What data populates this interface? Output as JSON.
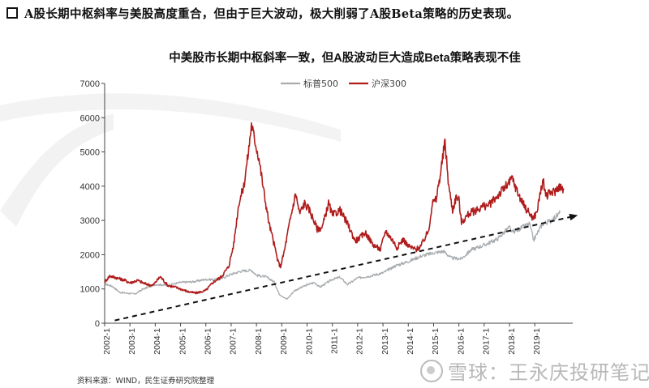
{
  "headline": "A股长期中枢斜率与美股高度重合，但由于巨大波动，极大削弱了A股Beta策略的历史表现。",
  "source": "资料来源：WIND，民生证券研究院整理",
  "watermark": "雪球：王永庆投研笔记",
  "colors": {
    "sp500": "#a8acaf",
    "hs300": "#b01c1c",
    "trend": "#111111",
    "grid": "#ffffff",
    "axis": "#444444"
  },
  "chart_data": {
    "type": "line",
    "title": "中美股市长期中枢斜率一致，但A股波动巨大造成Beta策略表现不佳",
    "xlabel": "",
    "ylabel": "",
    "ylim": [
      0,
      7000
    ],
    "yticks": [
      0,
      1000,
      2000,
      3000,
      4000,
      5000,
      6000,
      7000
    ],
    "xlim": [
      2002.0,
      2020.5
    ],
    "xtick_labels": [
      "2002-1",
      "2003-1",
      "2004-1",
      "2005-1",
      "2006-1",
      "2007-1",
      "2008-1",
      "2009-1",
      "2010-1",
      "2011-1",
      "2012-1",
      "2013-1",
      "2014-1",
      "2015-1",
      "2016-1",
      "2017-1",
      "2018-1",
      "2019-1"
    ],
    "legend": "top-left",
    "grid": false,
    "series": [
      {
        "name": "标普500",
        "color": "#a8acaf",
        "points": [
          [
            2002.0,
            1150
          ],
          [
            2002.3,
            1080
          ],
          [
            2002.6,
            900
          ],
          [
            2002.8,
            880
          ],
          [
            2003.0,
            870
          ],
          [
            2003.2,
            850
          ],
          [
            2003.5,
            990
          ],
          [
            2004.0,
            1130
          ],
          [
            2004.5,
            1110
          ],
          [
            2005.0,
            1190
          ],
          [
            2005.5,
            1210
          ],
          [
            2006.0,
            1280
          ],
          [
            2006.5,
            1270
          ],
          [
            2007.0,
            1430
          ],
          [
            2007.4,
            1520
          ],
          [
            2007.8,
            1550
          ],
          [
            2008.0,
            1400
          ],
          [
            2008.4,
            1350
          ],
          [
            2008.7,
            1200
          ],
          [
            2008.9,
            850
          ],
          [
            2009.2,
            700
          ],
          [
            2009.5,
            950
          ],
          [
            2010.0,
            1120
          ],
          [
            2010.3,
            1190
          ],
          [
            2010.5,
            1050
          ],
          [
            2011.0,
            1280
          ],
          [
            2011.3,
            1340
          ],
          [
            2011.6,
            1130
          ],
          [
            2012.0,
            1320
          ],
          [
            2012.5,
            1380
          ],
          [
            2013.0,
            1470
          ],
          [
            2013.5,
            1680
          ],
          [
            2014.0,
            1800
          ],
          [
            2014.5,
            1960
          ],
          [
            2015.0,
            2050
          ],
          [
            2015.4,
            2100
          ],
          [
            2015.7,
            1900
          ],
          [
            2016.1,
            1880
          ],
          [
            2016.5,
            2150
          ],
          [
            2017.0,
            2280
          ],
          [
            2017.5,
            2450
          ],
          [
            2018.0,
            2800
          ],
          [
            2018.1,
            2650
          ],
          [
            2018.8,
            2900
          ],
          [
            2018.95,
            2420
          ],
          [
            2019.3,
            2900
          ],
          [
            2019.6,
            2980
          ],
          [
            2019.9,
            3150
          ],
          [
            2020.0,
            3230
          ]
        ]
      },
      {
        "name": "沪深300",
        "color": "#b01c1c",
        "points": [
          [
            2002.0,
            1200
          ],
          [
            2002.2,
            1380
          ],
          [
            2002.5,
            1320
          ],
          [
            2002.8,
            1250
          ],
          [
            2003.0,
            1180
          ],
          [
            2003.3,
            1250
          ],
          [
            2003.6,
            1150
          ],
          [
            2003.9,
            1100
          ],
          [
            2004.2,
            1360
          ],
          [
            2004.5,
            1100
          ],
          [
            2004.8,
            1050
          ],
          [
            2005.0,
            1000
          ],
          [
            2005.3,
            920
          ],
          [
            2005.6,
            880
          ],
          [
            2005.9,
            930
          ],
          [
            2006.0,
            960
          ],
          [
            2006.3,
            1200
          ],
          [
            2006.6,
            1350
          ],
          [
            2006.9,
            1650
          ],
          [
            2007.1,
            2300
          ],
          [
            2007.3,
            3500
          ],
          [
            2007.5,
            4000
          ],
          [
            2007.7,
            5100
          ],
          [
            2007.8,
            5800
          ],
          [
            2007.95,
            5300
          ],
          [
            2008.1,
            4800
          ],
          [
            2008.3,
            3800
          ],
          [
            2008.5,
            2900
          ],
          [
            2008.7,
            2300
          ],
          [
            2008.85,
            1800
          ],
          [
            2008.95,
            1650
          ],
          [
            2009.1,
            2100
          ],
          [
            2009.3,
            2900
          ],
          [
            2009.55,
            3800
          ],
          [
            2009.7,
            3200
          ],
          [
            2009.9,
            3500
          ],
          [
            2010.1,
            3300
          ],
          [
            2010.4,
            2750
          ],
          [
            2010.6,
            2800
          ],
          [
            2010.85,
            3500
          ],
          [
            2011.0,
            3150
          ],
          [
            2011.3,
            3300
          ],
          [
            2011.6,
            2900
          ],
          [
            2011.9,
            2400
          ],
          [
            2012.1,
            2500
          ],
          [
            2012.3,
            2650
          ],
          [
            2012.6,
            2300
          ],
          [
            2012.9,
            2150
          ],
          [
            2013.1,
            2700
          ],
          [
            2013.4,
            2400
          ],
          [
            2013.55,
            2200
          ],
          [
            2013.8,
            2450
          ],
          [
            2014.0,
            2250
          ],
          [
            2014.3,
            2150
          ],
          [
            2014.5,
            2250
          ],
          [
            2014.8,
            2700
          ],
          [
            2014.95,
            3500
          ],
          [
            2015.1,
            3600
          ],
          [
            2015.3,
            4500
          ],
          [
            2015.45,
            5300
          ],
          [
            2015.6,
            4000
          ],
          [
            2015.75,
            3300
          ],
          [
            2015.9,
            3700
          ],
          [
            2016.0,
            3600
          ],
          [
            2016.1,
            2950
          ],
          [
            2016.4,
            3200
          ],
          [
            2016.7,
            3300
          ],
          [
            2016.9,
            3400
          ],
          [
            2017.2,
            3450
          ],
          [
            2017.5,
            3700
          ],
          [
            2017.8,
            3950
          ],
          [
            2018.0,
            4100
          ],
          [
            2018.1,
            4250
          ],
          [
            2018.3,
            3850
          ],
          [
            2018.6,
            3400
          ],
          [
            2018.8,
            3200
          ],
          [
            2018.95,
            3050
          ],
          [
            2019.1,
            3300
          ],
          [
            2019.25,
            3950
          ],
          [
            2019.35,
            4100
          ],
          [
            2019.45,
            3700
          ],
          [
            2019.6,
            3800
          ],
          [
            2019.8,
            3850
          ],
          [
            2019.95,
            4000
          ],
          [
            2020.05,
            3950
          ],
          [
            2020.15,
            3900
          ]
        ]
      }
    ],
    "trend_line": {
      "style": "dashed-arrow",
      "from": [
        2002.4,
        80
      ],
      "to": [
        2020.7,
        3150
      ]
    }
  }
}
